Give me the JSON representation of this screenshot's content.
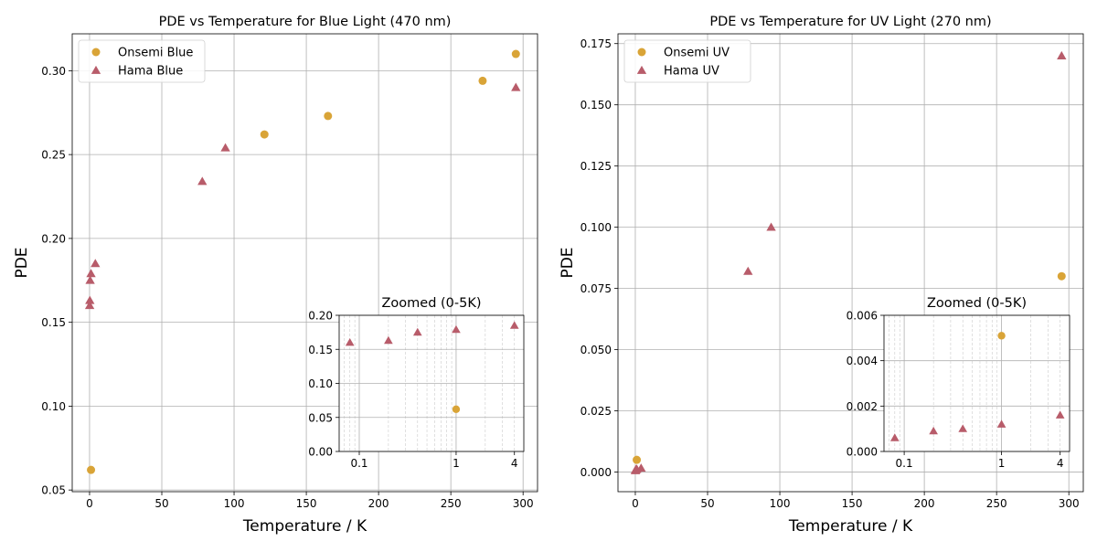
{
  "colors": {
    "onsemi": "#d9a437",
    "hama": "#b85c6a"
  },
  "chart_data": [
    {
      "type": "scatter",
      "title": "PDE vs Temperature for Blue Light (470 nm)",
      "xlabel": "Temperature / K",
      "ylabel": "PDE",
      "xlim": [
        -12,
        310
      ],
      "ylim": [
        0.049,
        0.322
      ],
      "xticks": [
        0,
        50,
        100,
        150,
        200,
        250,
        300
      ],
      "yticks": [
        0.05,
        0.1,
        0.15,
        0.2,
        0.25,
        0.3
      ],
      "ytick_labels": [
        "0.05",
        "0.10",
        "0.15",
        "0.20",
        "0.25",
        "0.30"
      ],
      "legend_position": "upper-left",
      "series": [
        {
          "name": "Onsemi Blue",
          "marker": "circle",
          "color": "onsemi",
          "x": [
            1,
            121,
            165,
            272,
            295
          ],
          "y": [
            0.062,
            0.262,
            0.273,
            0.294,
            0.31
          ]
        },
        {
          "name": "Hama Blue",
          "marker": "triangle",
          "color": "hama",
          "x": [
            0.08,
            0.2,
            0.4,
            1,
            4,
            78,
            94,
            295
          ],
          "y": [
            0.16,
            0.163,
            0.175,
            0.179,
            0.185,
            0.234,
            0.254,
            0.29
          ]
        }
      ],
      "inset": {
        "title": "Zoomed (0-5K)",
        "xscale": "log",
        "xlim": [
          0.062,
          5
        ],
        "ylim": [
          0,
          0.2
        ],
        "xticks": [
          0.1,
          1,
          4
        ],
        "xtick_labels": [
          "0.1",
          "1",
          "4"
        ],
        "yticks": [
          0,
          0.05,
          0.1,
          0.15,
          0.2
        ],
        "ytick_labels": [
          "0.00",
          "0.05",
          "0.10",
          "0.15",
          "0.20"
        ],
        "series": [
          {
            "name": "Onsemi Blue",
            "marker": "circle",
            "color": "onsemi",
            "x": [
              1
            ],
            "y": [
              0.062
            ]
          },
          {
            "name": "Hama Blue",
            "marker": "triangle",
            "color": "hama",
            "x": [
              0.08,
              0.2,
              0.4,
              1,
              4
            ],
            "y": [
              0.16,
              0.163,
              0.175,
              0.179,
              0.185
            ]
          }
        ]
      }
    },
    {
      "type": "scatter",
      "title": "PDE vs Temperature for UV Light (270 nm)",
      "xlabel": "Temperature / K",
      "ylabel": "PDE",
      "xlim": [
        -12,
        310
      ],
      "ylim": [
        -0.008,
        0.179
      ],
      "xticks": [
        0,
        50,
        100,
        150,
        200,
        250,
        300
      ],
      "yticks": [
        0,
        0.025,
        0.05,
        0.075,
        0.1,
        0.125,
        0.15,
        0.175
      ],
      "ytick_labels": [
        "0.000",
        "0.025",
        "0.050",
        "0.075",
        "0.100",
        "0.125",
        "0.150",
        "0.175"
      ],
      "legend_position": "upper-left",
      "series": [
        {
          "name": "Onsemi UV",
          "marker": "circle",
          "color": "onsemi",
          "x": [
            1,
            295
          ],
          "y": [
            0.005,
            0.08
          ]
        },
        {
          "name": "Hama UV",
          "marker": "triangle",
          "color": "hama",
          "x": [
            0.08,
            0.2,
            0.4,
            1,
            4,
            78,
            94,
            295
          ],
          "y": [
            0.0006,
            0.0009,
            0.001,
            0.0012,
            0.0016,
            0.082,
            0.1,
            0.17
          ]
        }
      ],
      "inset": {
        "title": "Zoomed (0-5K)",
        "xscale": "log",
        "xlim": [
          0.062,
          5
        ],
        "ylim": [
          0,
          0.006
        ],
        "xticks": [
          0.1,
          1,
          4
        ],
        "xtick_labels": [
          "0.1",
          "1",
          "4"
        ],
        "yticks": [
          0,
          0.002,
          0.004,
          0.006
        ],
        "ytick_labels": [
          "0.000",
          "0.002",
          "0.004",
          "0.006"
        ],
        "series": [
          {
            "name": "Onsemi UV",
            "marker": "circle",
            "color": "onsemi",
            "x": [
              1
            ],
            "y": [
              0.0051
            ]
          },
          {
            "name": "Hama UV",
            "marker": "triangle",
            "color": "hama",
            "x": [
              0.08,
              0.2,
              0.4,
              1,
              4
            ],
            "y": [
              0.0006,
              0.0009,
              0.001,
              0.0012,
              0.0016
            ]
          }
        ]
      }
    }
  ]
}
